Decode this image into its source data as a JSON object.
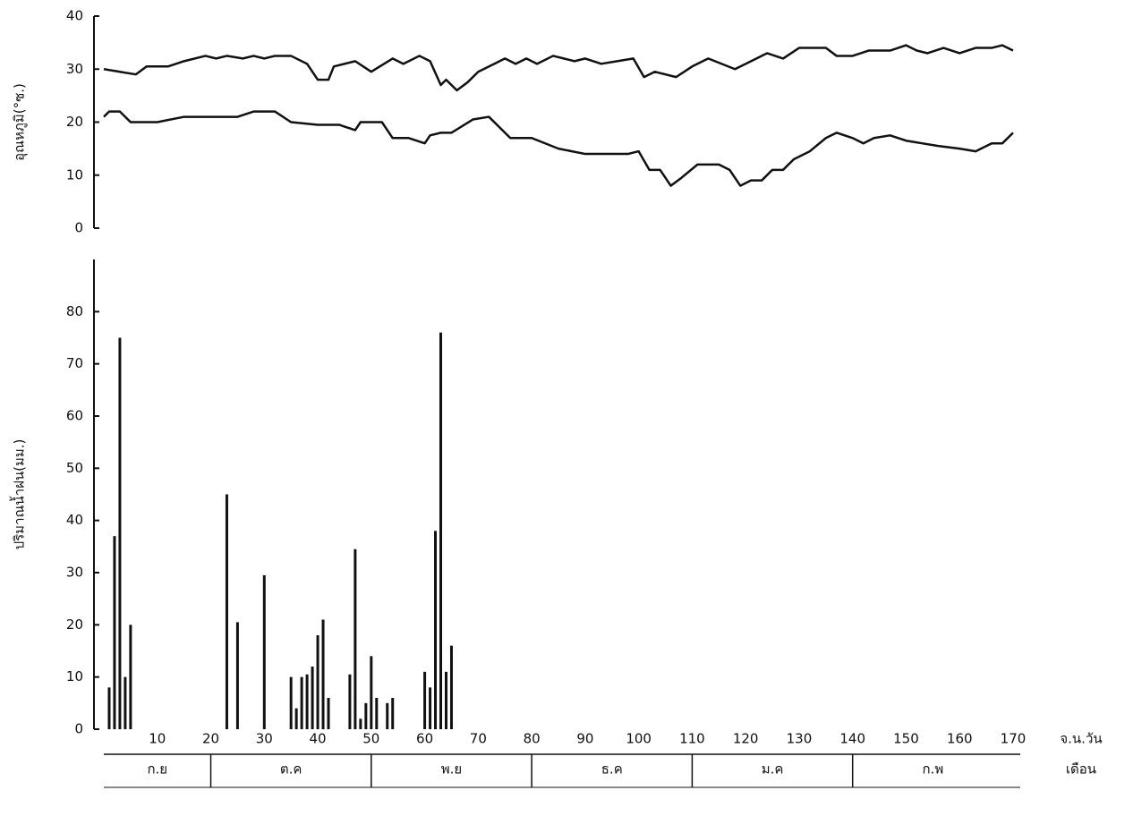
{
  "chart_data": [
    {
      "type": "line",
      "ylabel": "อุณหภูมิ(°ซ.)",
      "xlim": [
        0,
        170
      ],
      "ylim": [
        0,
        40
      ],
      "yticks": [
        0,
        10,
        20,
        30,
        40
      ],
      "series": [
        {
          "color": "#111111",
          "x": [
            0,
            3,
            6,
            8,
            12,
            15,
            19,
            21,
            23,
            26,
            28,
            30,
            32,
            35,
            38,
            40,
            42,
            43,
            47,
            50,
            54,
            56,
            59,
            61,
            63,
            64,
            66,
            68,
            70,
            73,
            75,
            77,
            79,
            81,
            84,
            86,
            88,
            90,
            93,
            96,
            99,
            101,
            103,
            107,
            110,
            113,
            118,
            120,
            124,
            127,
            130,
            135,
            137,
            140,
            143,
            147,
            150,
            152,
            154,
            157,
            160,
            163,
            166,
            168,
            170
          ],
          "values": [
            30,
            29.5,
            29,
            30.5,
            30.5,
            31.5,
            32.5,
            32,
            32.5,
            32,
            32.5,
            32,
            32.5,
            32.5,
            31,
            28,
            28,
            30.5,
            31.5,
            29.5,
            32,
            31,
            32.5,
            31.5,
            27,
            28,
            26,
            27.5,
            29.5,
            31,
            32,
            31,
            32,
            31,
            32.5,
            32,
            31.5,
            32,
            31,
            31.5,
            32,
            28.5,
            29.5,
            28.5,
            30.5,
            32,
            30,
            31,
            33,
            32,
            34,
            34,
            32.5,
            32.5,
            33.5,
            33.5,
            34.5,
            33.5,
            33,
            34,
            33,
            34,
            34,
            34.5,
            33.5
          ]
        },
        {
          "color": "#111111",
          "x": [
            0,
            1,
            3,
            5,
            10,
            15,
            20,
            25,
            28,
            32,
            35,
            40,
            44,
            47,
            48,
            52,
            54,
            57,
            60,
            61,
            63,
            65,
            69,
            72,
            76,
            80,
            85,
            90,
            95,
            98,
            100,
            102,
            104,
            106,
            108,
            111,
            115,
            117,
            119,
            121,
            123,
            125,
            127,
            129,
            132,
            135,
            137,
            140,
            142,
            144,
            147,
            150,
            153,
            156,
            160,
            163,
            166,
            168,
            170
          ],
          "values": [
            21,
            22,
            22,
            20,
            20,
            21,
            21,
            21,
            22,
            22,
            20,
            19.5,
            19.5,
            18.5,
            20,
            20,
            17,
            17,
            16,
            17.5,
            18,
            18,
            20.5,
            21,
            17,
            17,
            15,
            14,
            14,
            14,
            14.5,
            11,
            11,
            8,
            9.5,
            12,
            12,
            11,
            8,
            9,
            9,
            11,
            11,
            13,
            14.5,
            17,
            18,
            17,
            16,
            17,
            17.5,
            16.5,
            16,
            15.5,
            15,
            14.5,
            16,
            16,
            18
          ]
        }
      ]
    },
    {
      "type": "bar",
      "ylabel": "ปริมาณน้ำฝน(มม.)",
      "xlabel": "จ.น.วัน",
      "color": "#111111",
      "xlim": [
        0,
        170
      ],
      "xticks": [
        10,
        20,
        30,
        40,
        50,
        60,
        70,
        80,
        90,
        100,
        110,
        120,
        130,
        140,
        150,
        160,
        170
      ],
      "ylim": [
        0,
        90
      ],
      "yticks": [
        0,
        10,
        20,
        30,
        40,
        50,
        60,
        70,
        80
      ],
      "x": [
        1,
        2,
        3,
        4,
        5,
        23,
        25,
        30,
        35,
        36,
        37,
        38,
        39,
        40,
        41,
        42,
        46,
        47,
        48,
        49,
        50,
        51,
        53,
        54,
        60,
        61,
        62,
        63,
        64,
        65
      ],
      "values": [
        8,
        37,
        75,
        10,
        20,
        45,
        20.5,
        29.5,
        10,
        4,
        10,
        10.5,
        12,
        18,
        21,
        6,
        10.5,
        34.5,
        2,
        5,
        14,
        6,
        5,
        6,
        11,
        8,
        38,
        76,
        11,
        16
      ],
      "months_label": "เดือน",
      "months": [
        "ก.ย",
        "ต.ค",
        "พ.ย",
        "ธ.ค",
        "ม.ค",
        "ก.พ"
      ],
      "month_edges": [
        0,
        20,
        50,
        80,
        110,
        140,
        170
      ]
    }
  ]
}
